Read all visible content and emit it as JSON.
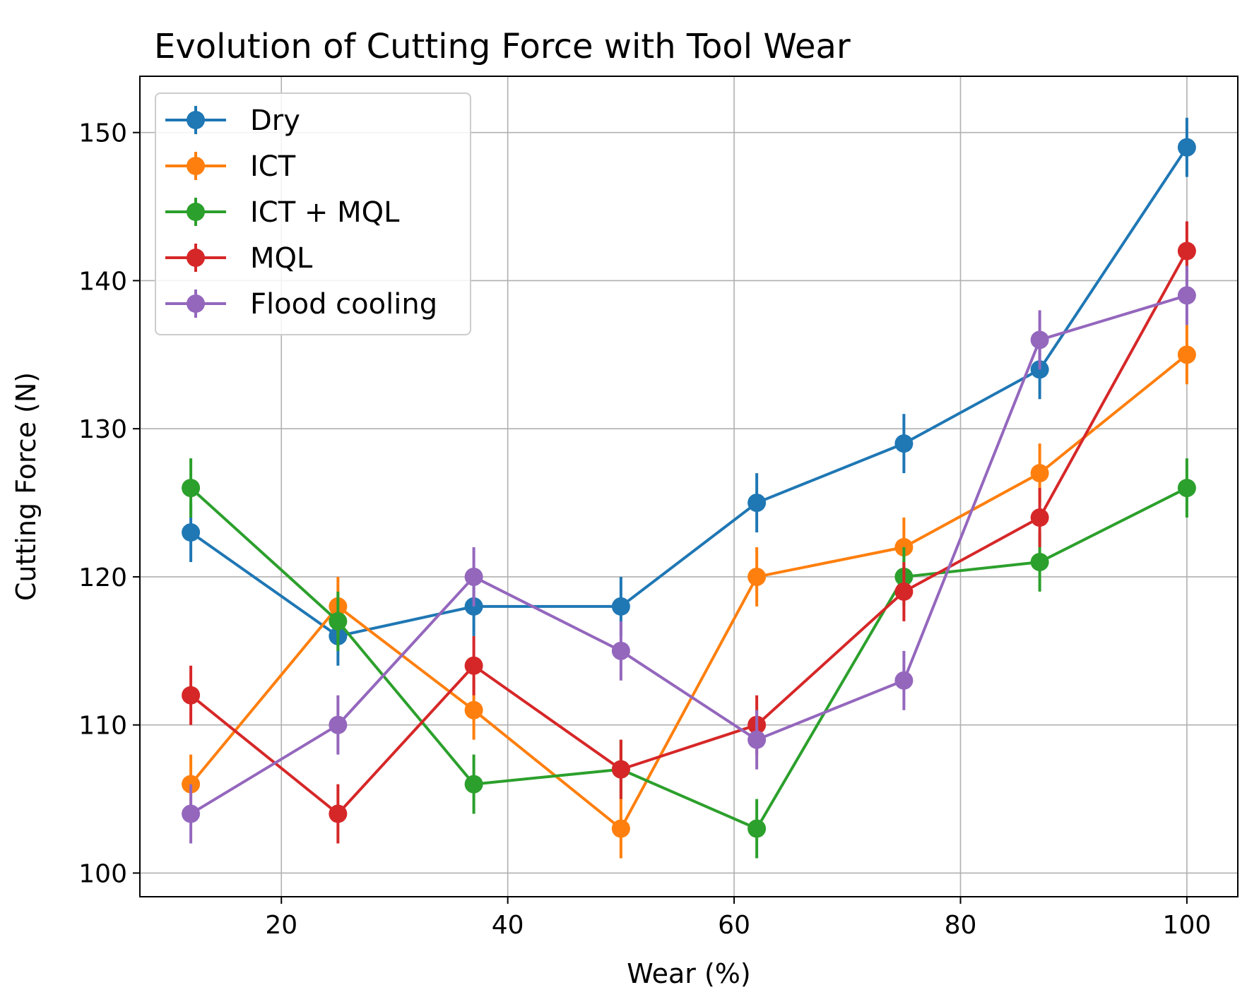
{
  "chart_data": {
    "type": "line",
    "title": "Evolution of Cutting Force with Tool Wear",
    "xlabel": "Wear (%)",
    "ylabel": "Cutting Force (N)",
    "xlim": [
      7.5,
      104.5
    ],
    "ylim": [
      98.4,
      153.8
    ],
    "xticks": [
      20,
      40,
      60,
      80,
      100
    ],
    "yticks": [
      100,
      110,
      120,
      130,
      140,
      150
    ],
    "grid": true,
    "legend_position": "top-left",
    "x": [
      12,
      25,
      37,
      50,
      62,
      75,
      87,
      100
    ],
    "series": [
      {
        "name": "Dry",
        "color": "#1f77b4",
        "values": [
          123,
          116,
          118,
          118,
          125,
          129,
          134,
          149
        ],
        "error": 2
      },
      {
        "name": "ICT",
        "color": "#ff7f0e",
        "values": [
          106,
          118,
          111,
          103,
          120,
          122,
          127,
          135
        ],
        "error": 2
      },
      {
        "name": "ICT + MQL",
        "color": "#2ca02c",
        "values": [
          126,
          117,
          106,
          107,
          103,
          120,
          121,
          126
        ],
        "error": 2
      },
      {
        "name": "MQL",
        "color": "#d62728",
        "values": [
          112,
          104,
          114,
          107,
          110,
          119,
          124,
          142
        ],
        "error": 2
      },
      {
        "name": "Flood cooling",
        "color": "#9467bd",
        "values": [
          104,
          110,
          120,
          115,
          109,
          113,
          136,
          139
        ],
        "error": 2
      }
    ]
  }
}
